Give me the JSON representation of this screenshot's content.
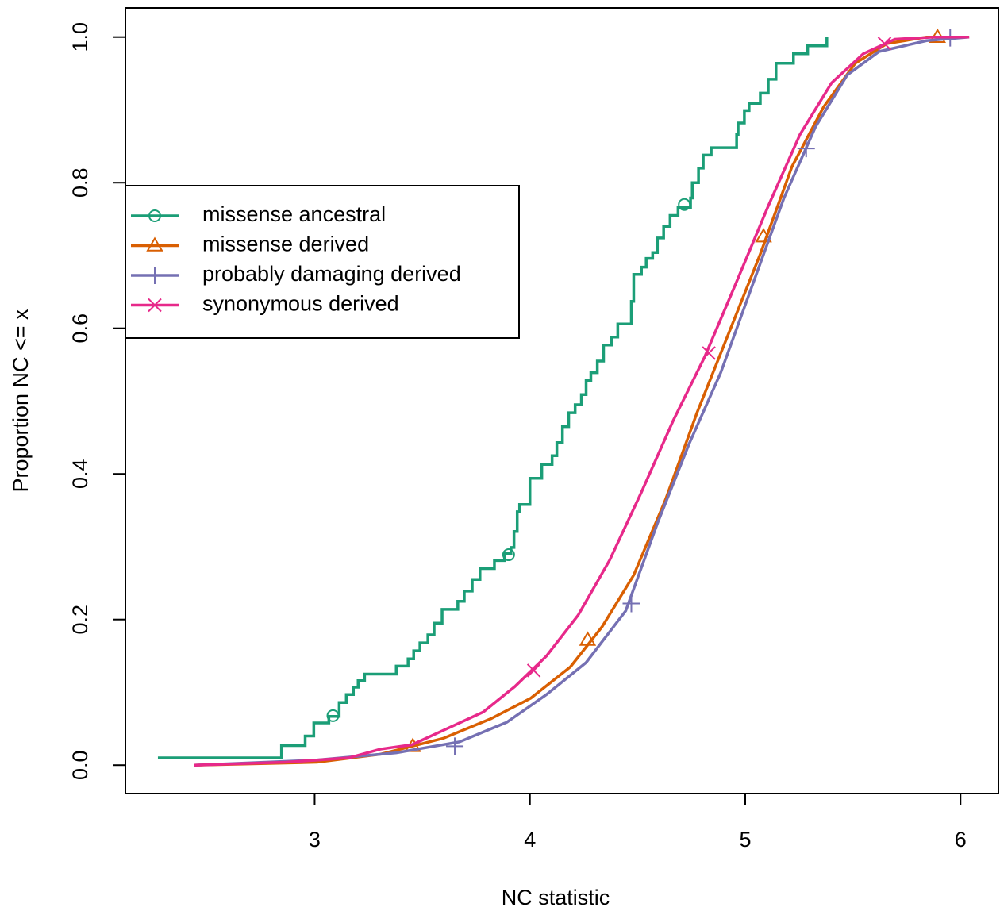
{
  "chart_data": {
    "type": "line",
    "xlabel": "NC statistic",
    "ylabel": "Proportion NC <= x",
    "xlim": [
      2.121,
      6.176
    ],
    "ylim": [
      -0.039,
      1.04
    ],
    "xticks": [
      3,
      4,
      5,
      6
    ],
    "yticks": [
      {
        "value": 0,
        "label": "0.0"
      },
      0.2,
      0.4,
      0.6,
      0.8,
      {
        "value": 1,
        "label": "1.0"
      }
    ],
    "legend": "left",
    "series": [
      {
        "name": "missense ancestral",
        "color": "#1b9e77",
        "marker": "circle",
        "step": true,
        "x": [
          2.272,
          2.846,
          2.956,
          2.996,
          3.066,
          3.114,
          3.147,
          3.18,
          3.202,
          3.232,
          3.379,
          3.434,
          3.46,
          3.489,
          3.526,
          3.555,
          3.592,
          3.665,
          3.695,
          3.732,
          3.768,
          3.835,
          3.882,
          3.912,
          3.926,
          3.941,
          3.952,
          4.0,
          4.055,
          4.103,
          4.125,
          4.151,
          4.18,
          4.21,
          4.239,
          4.261,
          4.283,
          4.313,
          4.342,
          4.379,
          4.408,
          4.471,
          4.482,
          4.518,
          4.54,
          4.57,
          4.592,
          4.621,
          4.651,
          4.688,
          4.746,
          4.754,
          4.783,
          4.805,
          4.842,
          4.96,
          4.967,
          4.996,
          5.018,
          5.07,
          5.107,
          5.143,
          5.224,
          5.29,
          5.379
        ],
        "values": [
          0.01,
          0.027,
          0.04,
          0.058,
          0.067,
          0.086,
          0.097,
          0.107,
          0.116,
          0.125,
          0.136,
          0.146,
          0.157,
          0.168,
          0.179,
          0.195,
          0.214,
          0.225,
          0.239,
          0.255,
          0.27,
          0.281,
          0.291,
          0.299,
          0.321,
          0.348,
          0.358,
          0.394,
          0.413,
          0.425,
          0.443,
          0.465,
          0.484,
          0.495,
          0.509,
          0.528,
          0.539,
          0.555,
          0.577,
          0.588,
          0.606,
          0.637,
          0.674,
          0.684,
          0.696,
          0.704,
          0.724,
          0.74,
          0.755,
          0.766,
          0.779,
          0.8,
          0.82,
          0.838,
          0.848,
          0.866,
          0.882,
          0.899,
          0.909,
          0.923,
          0.942,
          0.964,
          0.977,
          0.988,
          1.0
        ],
        "markers_x": [
          3.085,
          3.901,
          4.717
        ],
        "markers_y": [
          0.068,
          0.289,
          0.77
        ]
      },
      {
        "name": "missense derived",
        "color": "#d95f02",
        "marker": "triangle",
        "step": false,
        "x": [
          2.441,
          3.011,
          3.305,
          3.599,
          3.82,
          4.004,
          4.188,
          4.335,
          4.482,
          4.629,
          4.776,
          4.923,
          5.07,
          5.217,
          5.364,
          5.511,
          5.658,
          5.842,
          6.04
        ],
        "values": [
          0,
          0.004,
          0.015,
          0.037,
          0.064,
          0.092,
          0.135,
          0.19,
          0.261,
          0.364,
          0.484,
          0.593,
          0.702,
          0.822,
          0.904,
          0.964,
          0.991,
          1.0,
          1.0
        ],
        "markers_x": [
          3.456,
          4.268,
          5.085,
          5.893
        ],
        "markers_y": [
          0.026,
          0.172,
          0.726,
          1.0
        ]
      },
      {
        "name": "probably damaging derived",
        "color": "#7570b3",
        "marker": "plus",
        "step": false,
        "x": [
          2.441,
          3.011,
          3.379,
          3.673,
          3.893,
          4.077,
          4.261,
          4.445,
          4.592,
          4.739,
          4.886,
          5.033,
          5.18,
          5.327,
          5.474,
          5.621,
          5.842,
          6.04
        ],
        "values": [
          0,
          0.007,
          0.017,
          0.032,
          0.059,
          0.097,
          0.141,
          0.212,
          0.332,
          0.441,
          0.539,
          0.659,
          0.779,
          0.877,
          0.948,
          0.98,
          0.995,
          1.0
        ],
        "markers_x": [
          3.651,
          4.471,
          5.283,
          5.952
        ],
        "markers_y": [
          0.026,
          0.222,
          0.847,
          0.999
        ]
      },
      {
        "name": "synonymous derived",
        "color": "#e7298a",
        "marker": "cross",
        "step": false,
        "x": [
          2.441,
          2.864,
          3.158,
          3.305,
          3.452,
          3.599,
          3.783,
          3.93,
          4.077,
          4.224,
          4.371,
          4.518,
          4.665,
          4.812,
          4.96,
          5.107,
          5.254,
          5.401,
          5.548,
          5.695,
          5.879,
          6.04
        ],
        "values": [
          0,
          0.004,
          0.01,
          0.022,
          0.028,
          0.048,
          0.073,
          0.108,
          0.15,
          0.206,
          0.282,
          0.375,
          0.473,
          0.561,
          0.664,
          0.768,
          0.866,
          0.937,
          0.977,
          0.997,
          1.0,
          1.0
        ],
        "markers_x": [
          4.018,
          4.831,
          5.647
        ],
        "markers_y": [
          0.13,
          0.566,
          0.991
        ]
      }
    ]
  }
}
